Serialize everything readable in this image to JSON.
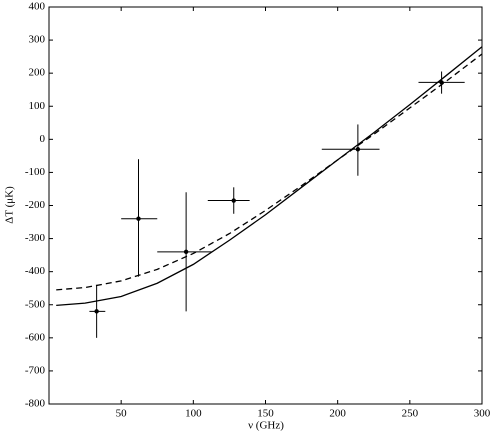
{
  "chart_data": {
    "type": "errorbar",
    "x_label": "ν (GHz)",
    "y_label": "ΔT (μK)",
    "xlim": [
      0,
      300
    ],
    "ylim": [
      -800,
      400
    ],
    "xticks": [
      50,
      100,
      150,
      200,
      250,
      300
    ],
    "yticks": [
      -800,
      -700,
      -600,
      -500,
      -400,
      -300,
      -200,
      -100,
      0,
      100,
      200,
      300,
      400
    ],
    "color": "#000000",
    "points": {
      "x": [
        33,
        62,
        95,
        128,
        214,
        272
      ],
      "y": [
        -520,
        -240,
        -340,
        -185,
        -30,
        172
      ],
      "x_low": [
        28,
        50,
        75,
        110,
        189,
        256
      ],
      "x_high": [
        39,
        75,
        113,
        139,
        229,
        288
      ],
      "y_low": [
        -600,
        -415,
        -520,
        -225,
        -110,
        138
      ],
      "y_high": [
        -440,
        -60,
        -160,
        -145,
        45,
        205
      ]
    },
    "curves": [
      {
        "style": "solid",
        "x": [
          5,
          25,
          50,
          75,
          100,
          125,
          150,
          175,
          200,
          225,
          250,
          275,
          300
        ],
        "y": [
          -502,
          -495,
          -475,
          -435,
          -378,
          -305,
          -228,
          -145,
          -62,
          20,
          105,
          192,
          280
        ]
      },
      {
        "style": "dashed",
        "x": [
          5,
          25,
          50,
          75,
          100,
          125,
          150,
          175,
          200,
          225,
          250,
          275,
          300
        ],
        "y": [
          -455,
          -448,
          -428,
          -393,
          -345,
          -285,
          -215,
          -140,
          -62,
          15,
          95,
          175,
          258
        ]
      }
    ]
  }
}
